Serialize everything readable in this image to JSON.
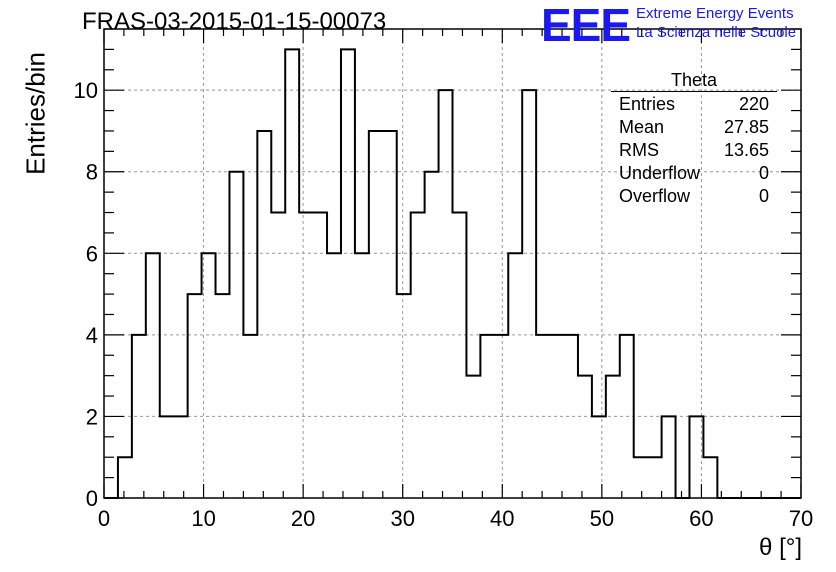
{
  "title": "FRAS-03-2015-01-15-00073",
  "logo": {
    "mark": "EEE",
    "line1": "Extreme Energy Events",
    "line2": "La Scienza nelle Scuole",
    "color": "#1a1af0"
  },
  "stats": {
    "title": "Theta",
    "rows": [
      {
        "label": "Entries",
        "value": "220"
      },
      {
        "label": "Mean",
        "value": "27.85"
      },
      {
        "label": "RMS",
        "value": "13.65"
      },
      {
        "label": "Underflow",
        "value": "0"
      },
      {
        "label": "Overflow",
        "value": "0"
      }
    ]
  },
  "chart_data": {
    "type": "histogram",
    "xlabel": "θ [°]",
    "ylabel": "Entries/bin",
    "xlim": [
      0,
      70
    ],
    "ylim": [
      0,
      11.5
    ],
    "x_ticks": [
      0,
      10,
      20,
      30,
      40,
      50,
      60,
      70
    ],
    "y_ticks": [
      0,
      2,
      4,
      6,
      8,
      10
    ],
    "grid": true,
    "bin_width": 1.4,
    "bin_start": 0,
    "counts": [
      0,
      1,
      4,
      6,
      2,
      2,
      5,
      6,
      5,
      8,
      4,
      9,
      7,
      11,
      7,
      7,
      6,
      11,
      6,
      9,
      9,
      5,
      7,
      8,
      10,
      7,
      3,
      4,
      4,
      6,
      10,
      4,
      4,
      4,
      3,
      2,
      3,
      4,
      1,
      1,
      2,
      0,
      2,
      1,
      0,
      0,
      0,
      0,
      0,
      0
    ]
  }
}
